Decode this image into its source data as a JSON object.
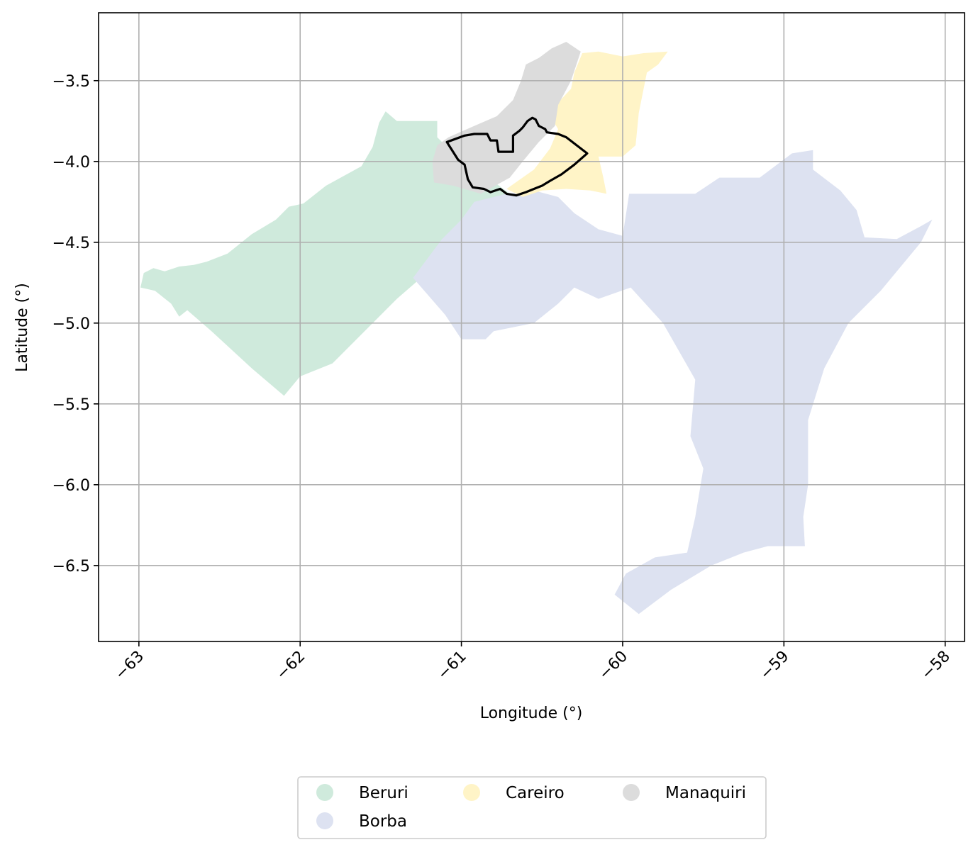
{
  "map": {
    "xlabel": "Longitude (°)",
    "ylabel": "Latitude (°)",
    "xlim": [
      -63.25,
      -57.88
    ],
    "ylim": [
      -6.97,
      -3.08
    ],
    "x_ticks": [
      -63,
      -62,
      -61,
      -60,
      -59,
      -58
    ],
    "x_tick_labels": [
      "−63",
      "−62",
      "−61",
      "−60",
      "−59",
      "−58"
    ],
    "y_ticks": [
      -3.5,
      -4.0,
      -4.5,
      -5.0,
      -5.5,
      -6.0,
      -6.5
    ],
    "y_tick_labels": [
      "−3.5",
      "−4.0",
      "−4.5",
      "−5.0",
      "−5.5",
      "−6.0",
      "−6.5"
    ],
    "grid": true,
    "legend_placement": "bottom-center",
    "regions": [
      {
        "name": "Beruri",
        "color": "#cfeadc",
        "outline": [
          [
            -62.99,
            -4.78
          ],
          [
            -62.97,
            -4.69
          ],
          [
            -62.91,
            -4.66
          ],
          [
            -62.84,
            -4.68
          ],
          [
            -62.75,
            -4.65
          ],
          [
            -62.66,
            -4.64
          ],
          [
            -62.58,
            -4.62
          ],
          [
            -62.45,
            -4.57
          ],
          [
            -62.3,
            -4.45
          ],
          [
            -62.15,
            -4.36
          ],
          [
            -62.07,
            -4.28
          ],
          [
            -61.98,
            -4.26
          ],
          [
            -61.84,
            -4.15
          ],
          [
            -61.62,
            -4.03
          ],
          [
            -61.55,
            -3.91
          ],
          [
            -61.51,
            -3.76
          ],
          [
            -61.47,
            -3.69
          ],
          [
            -61.4,
            -3.75
          ],
          [
            -61.15,
            -3.75
          ],
          [
            -61.15,
            -3.85
          ],
          [
            -61.1,
            -3.9
          ],
          [
            -60.7,
            -4.2
          ],
          [
            -60.62,
            -4.3
          ],
          [
            -60.8,
            -4.45
          ],
          [
            -61.0,
            -4.58
          ],
          [
            -61.25,
            -4.72
          ],
          [
            -61.4,
            -4.85
          ],
          [
            -61.8,
            -5.25
          ],
          [
            -62.0,
            -5.33
          ],
          [
            -62.1,
            -5.45
          ],
          [
            -62.3,
            -5.28
          ],
          [
            -62.55,
            -5.05
          ],
          [
            -62.7,
            -4.92
          ],
          [
            -62.75,
            -4.96
          ],
          [
            -62.8,
            -4.88
          ],
          [
            -62.9,
            -4.8
          ]
        ]
      },
      {
        "name": "Borba",
        "color": "#dde2f1",
        "outline": [
          [
            -61.3,
            -4.72
          ],
          [
            -61.12,
            -4.48
          ],
          [
            -61.0,
            -4.36
          ],
          [
            -60.92,
            -4.25
          ],
          [
            -60.72,
            -4.2
          ],
          [
            -60.55,
            -4.18
          ],
          [
            -60.4,
            -4.22
          ],
          [
            -60.3,
            -4.32
          ],
          [
            -60.15,
            -4.42
          ],
          [
            -60.0,
            -4.46
          ],
          [
            -59.96,
            -4.2
          ],
          [
            -59.55,
            -4.2
          ],
          [
            -59.4,
            -4.1
          ],
          [
            -59.15,
            -4.1
          ],
          [
            -58.95,
            -3.95
          ],
          [
            -58.82,
            -3.93
          ],
          [
            -58.82,
            -4.05
          ],
          [
            -58.65,
            -4.18
          ],
          [
            -58.55,
            -4.3
          ],
          [
            -58.5,
            -4.47
          ],
          [
            -58.3,
            -4.48
          ],
          [
            -58.15,
            -4.4
          ],
          [
            -58.08,
            -4.36
          ],
          [
            -58.15,
            -4.5
          ],
          [
            -58.4,
            -4.8
          ],
          [
            -58.6,
            -5.0
          ],
          [
            -58.75,
            -5.28
          ],
          [
            -58.85,
            -5.6
          ],
          [
            -58.85,
            -6.0
          ],
          [
            -58.88,
            -6.2
          ],
          [
            -58.87,
            -6.38
          ],
          [
            -59.1,
            -6.38
          ],
          [
            -59.25,
            -6.42
          ],
          [
            -59.45,
            -6.5
          ],
          [
            -59.7,
            -6.65
          ],
          [
            -59.9,
            -6.8
          ],
          [
            -60.05,
            -6.68
          ],
          [
            -59.98,
            -6.55
          ],
          [
            -59.8,
            -6.45
          ],
          [
            -59.6,
            -6.42
          ],
          [
            -59.55,
            -6.2
          ],
          [
            -59.5,
            -5.9
          ],
          [
            -59.58,
            -5.7
          ],
          [
            -59.55,
            -5.35
          ],
          [
            -59.75,
            -5.0
          ],
          [
            -59.95,
            -4.78
          ],
          [
            -60.15,
            -4.85
          ],
          [
            -60.3,
            -4.78
          ],
          [
            -60.4,
            -4.88
          ],
          [
            -60.55,
            -5.0
          ],
          [
            -60.8,
            -5.05
          ],
          [
            -60.85,
            -5.1
          ],
          [
            -61.0,
            -5.1
          ],
          [
            -61.1,
            -4.95
          ]
        ]
      },
      {
        "name": "Careiro",
        "color": "#fff4c7",
        "outline": [
          [
            -60.72,
            -4.17
          ],
          [
            -60.55,
            -4.05
          ],
          [
            -60.45,
            -3.92
          ],
          [
            -60.4,
            -3.8
          ],
          [
            -60.46,
            -3.7
          ],
          [
            -60.32,
            -3.55
          ],
          [
            -60.3,
            -3.45
          ],
          [
            -60.25,
            -3.33
          ],
          [
            -60.15,
            -3.32
          ],
          [
            -60.0,
            -3.35
          ],
          [
            -59.87,
            -3.33
          ],
          [
            -59.72,
            -3.32
          ],
          [
            -59.78,
            -3.4
          ],
          [
            -59.85,
            -3.45
          ],
          [
            -59.9,
            -3.7
          ],
          [
            -59.92,
            -3.9
          ],
          [
            -60.0,
            -3.97
          ],
          [
            -60.15,
            -3.97
          ],
          [
            -60.12,
            -4.1
          ],
          [
            -60.1,
            -4.2
          ],
          [
            -60.2,
            -4.18
          ],
          [
            -60.35,
            -4.17
          ],
          [
            -60.5,
            -4.18
          ],
          [
            -60.62,
            -4.22
          ]
        ]
      },
      {
        "name": "Manaquiri",
        "color": "#dcdcdc",
        "outline": [
          [
            -61.17,
            -4.13
          ],
          [
            -61.18,
            -4.0
          ],
          [
            -61.15,
            -3.9
          ],
          [
            -61.08,
            -3.85
          ],
          [
            -60.92,
            -3.78
          ],
          [
            -60.78,
            -3.72
          ],
          [
            -60.68,
            -3.62
          ],
          [
            -60.63,
            -3.5
          ],
          [
            -60.6,
            -3.4
          ],
          [
            -60.52,
            -3.36
          ],
          [
            -60.44,
            -3.3
          ],
          [
            -60.35,
            -3.26
          ],
          [
            -60.26,
            -3.32
          ],
          [
            -60.32,
            -3.5
          ],
          [
            -60.4,
            -3.65
          ],
          [
            -60.42,
            -3.78
          ],
          [
            -60.52,
            -3.88
          ],
          [
            -60.62,
            -4.0
          ],
          [
            -60.7,
            -4.1
          ],
          [
            -60.88,
            -4.2
          ],
          [
            -61.05,
            -4.15
          ]
        ]
      }
    ],
    "highlight_outline": {
      "color": "#000000",
      "outline": [
        [
          -61.09,
          -3.88
        ],
        [
          -60.98,
          -3.84
        ],
        [
          -60.92,
          -3.83
        ],
        [
          -60.88,
          -3.83
        ],
        [
          -60.84,
          -3.83
        ],
        [
          -60.82,
          -3.87
        ],
        [
          -60.78,
          -3.87
        ],
        [
          -60.77,
          -3.94
        ],
        [
          -60.68,
          -3.94
        ],
        [
          -60.68,
          -3.84
        ],
        [
          -60.64,
          -3.81
        ],
        [
          -60.62,
          -3.79
        ],
        [
          -60.59,
          -3.75
        ],
        [
          -60.56,
          -3.73
        ],
        [
          -60.54,
          -3.74
        ],
        [
          -60.52,
          -3.78
        ],
        [
          -60.48,
          -3.8
        ],
        [
          -60.47,
          -3.82
        ],
        [
          -60.4,
          -3.83
        ],
        [
          -60.35,
          -3.85
        ],
        [
          -60.22,
          -3.95
        ],
        [
          -60.3,
          -4.02
        ],
        [
          -60.38,
          -4.08
        ],
        [
          -60.45,
          -4.12
        ],
        [
          -60.5,
          -4.15
        ],
        [
          -60.55,
          -4.17
        ],
        [
          -60.6,
          -4.19
        ],
        [
          -60.66,
          -4.21
        ],
        [
          -60.72,
          -4.2
        ],
        [
          -60.76,
          -4.17
        ],
        [
          -60.82,
          -4.19
        ],
        [
          -60.86,
          -4.17
        ],
        [
          -60.93,
          -4.16
        ],
        [
          -60.96,
          -4.11
        ],
        [
          -60.98,
          -4.02
        ],
        [
          -61.02,
          -3.99
        ]
      ]
    },
    "legend": [
      {
        "label": "Beruri",
        "color": "#cfeadc"
      },
      {
        "label": "Careiro",
        "color": "#fff4c7"
      },
      {
        "label": "Manaquiri",
        "color": "#dcdcdc"
      },
      {
        "label": "Borba",
        "color": "#dde2f1"
      }
    ]
  }
}
